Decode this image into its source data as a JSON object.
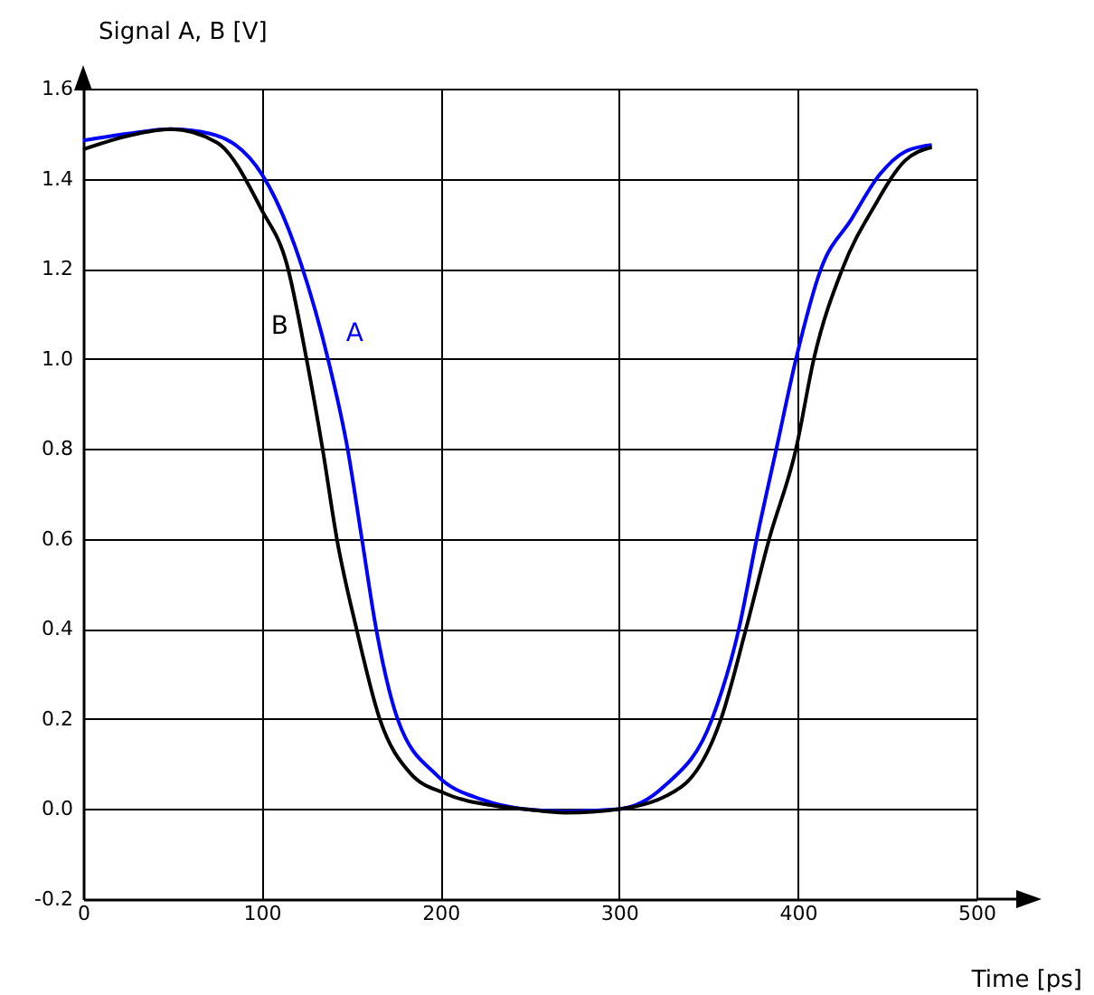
{
  "chart_data": {
    "type": "line",
    "xlabel": "Time [ps]",
    "ylabel": "Signal A, B [V]",
    "xlim": [
      0,
      500
    ],
    "xticks": [
      0,
      100,
      200,
      300,
      400,
      500
    ],
    "ylim": [
      -0.2,
      1.6
    ],
    "yticks": [
      {
        "value": -0.2,
        "label": "-0.2"
      },
      {
        "value": 0,
        "label": "0.0"
      },
      {
        "value": 0.2,
        "label": "0.2"
      },
      {
        "value": 0.4,
        "label": "0.4"
      },
      {
        "value": 0.6,
        "label": "0.6"
      },
      {
        "value": 0.8,
        "label": "0.8"
      },
      {
        "value": 1,
        "label": "1.0"
      },
      {
        "value": 1.2,
        "label": "1.2"
      },
      {
        "value": 1.4,
        "label": "1.4"
      },
      {
        "value": 1.6,
        "label": "1.6"
      }
    ],
    "grid": true,
    "line_style": "solid",
    "marker": "none",
    "legend": false,
    "series": [
      {
        "name": "A",
        "color": "#0000ff",
        "x": [
          0,
          25,
          49,
          71,
          100,
          122,
          137,
          148,
          156,
          164,
          176,
          198,
          224,
          247,
          270,
          300,
          325,
          352,
          367,
          377,
          388,
          399,
          413,
          430,
          446,
          460,
          475
        ],
        "values": [
          1.485,
          1.5,
          1.51,
          1.5,
          1.41,
          1.21,
          1.0,
          0.8,
          0.6,
          0.4,
          0.2,
          0.075,
          0.02,
          0.0,
          -0.005,
          0.0,
          0.05,
          0.2,
          0.4,
          0.6,
          0.8,
          1.0,
          1.2,
          1.31,
          1.41,
          1.46,
          1.475
        ]
      },
      {
        "name": "B",
        "color": "#000000",
        "x": [
          0,
          25,
          49,
          75,
          100,
          114,
          125,
          134,
          142,
          153,
          166,
          183,
          203,
          231,
          247,
          270,
          300,
          335,
          357,
          371,
          384,
          399,
          409,
          425,
          443,
          460,
          475
        ],
        "values": [
          1.465,
          1.495,
          1.51,
          1.48,
          1.33,
          1.21,
          1.0,
          0.8,
          0.6,
          0.4,
          0.2,
          0.08,
          0.034,
          0.007,
          0.0,
          -0.008,
          0.0,
          0.05,
          0.2,
          0.4,
          0.6,
          0.8,
          1.0,
          1.2,
          1.34,
          1.44,
          1.47
        ]
      }
    ]
  }
}
